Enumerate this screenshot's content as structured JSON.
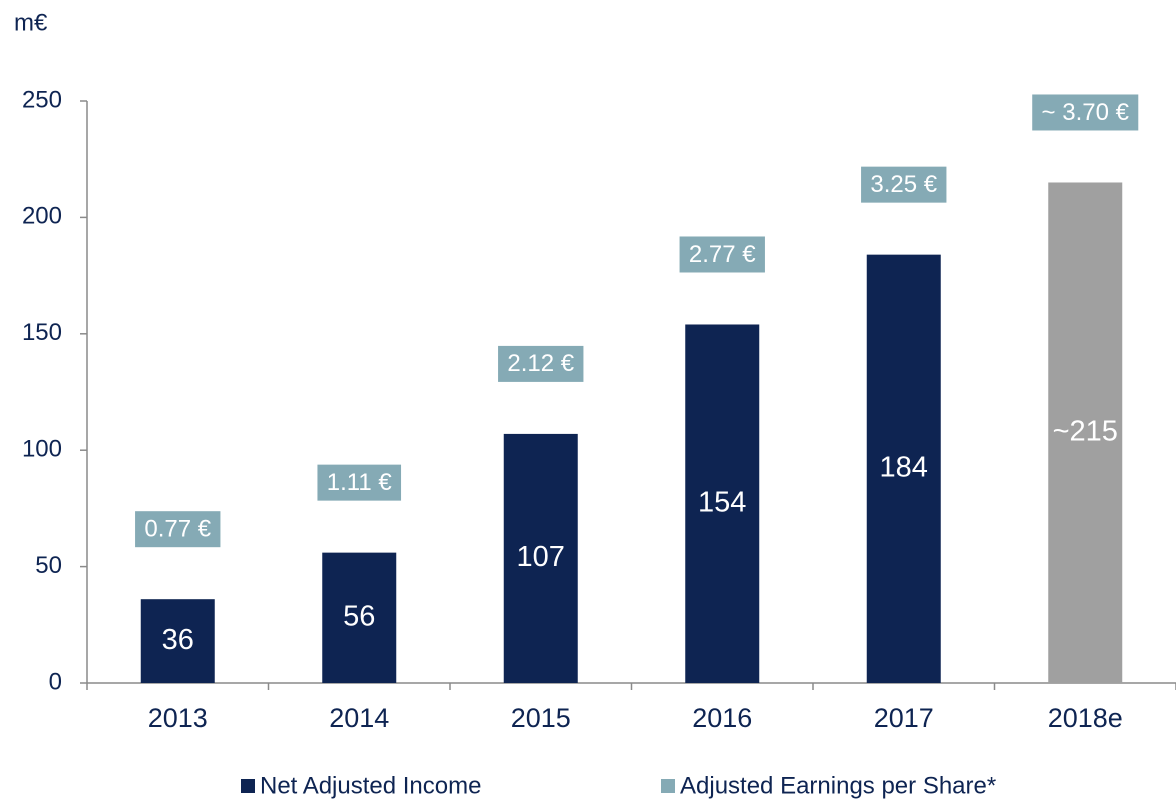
{
  "chart_data": {
    "type": "bar",
    "y_label": "m€",
    "categories": [
      "2013",
      "2014",
      "2015",
      "2016",
      "2017",
      "2018e"
    ],
    "series": [
      {
        "name": "Net Adjusted Income",
        "color": "#0e2452",
        "bar_colors": [
          "#0e2452",
          "#0e2452",
          "#0e2452",
          "#0e2452",
          "#0e2452",
          "#a0a0a0"
        ],
        "values": [
          36,
          56,
          107,
          154,
          184,
          215
        ],
        "value_labels": [
          "36",
          "56",
          "107",
          "154",
          "184",
          "~215"
        ]
      },
      {
        "name": "Adjusted Earnings per Share*",
        "color": "#85aab5",
        "values": [
          0.77,
          1.11,
          2.12,
          2.77,
          3.25,
          3.7
        ],
        "value_labels": [
          "0.77 €",
          "1.11 €",
          "2.12 €",
          "2.77 €",
          "3.25 €",
          "~ 3.70 €"
        ]
      }
    ],
    "ylim": [
      0,
      250
    ],
    "yticks": [
      0,
      50,
      100,
      150,
      200,
      250
    ]
  }
}
